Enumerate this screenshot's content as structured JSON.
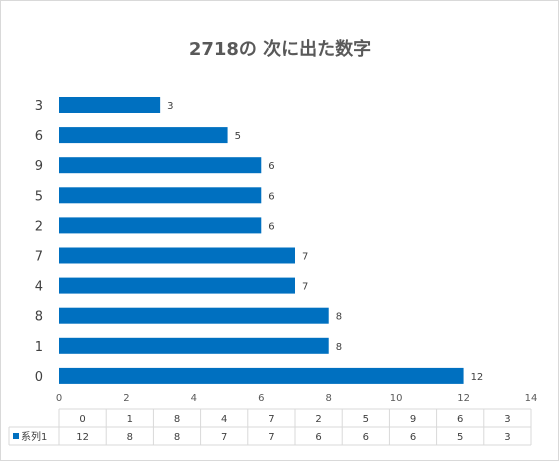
{
  "chart_data": {
    "type": "bar",
    "orientation": "horizontal",
    "title": "2718の 次に出た数字",
    "categories": [
      "0",
      "1",
      "8",
      "4",
      "7",
      "2",
      "5",
      "9",
      "6",
      "3"
    ],
    "series": [
      {
        "name": "系列1",
        "values": [
          12,
          8,
          8,
          7,
          7,
          6,
          6,
          6,
          5,
          3
        ]
      }
    ],
    "xlim": [
      0,
      14
    ],
    "xticks": [
      0,
      2,
      4,
      6,
      8,
      10,
      12,
      14
    ],
    "grid": false,
    "data_labels": true,
    "data_table": true,
    "bar_color": "#0070C0"
  }
}
